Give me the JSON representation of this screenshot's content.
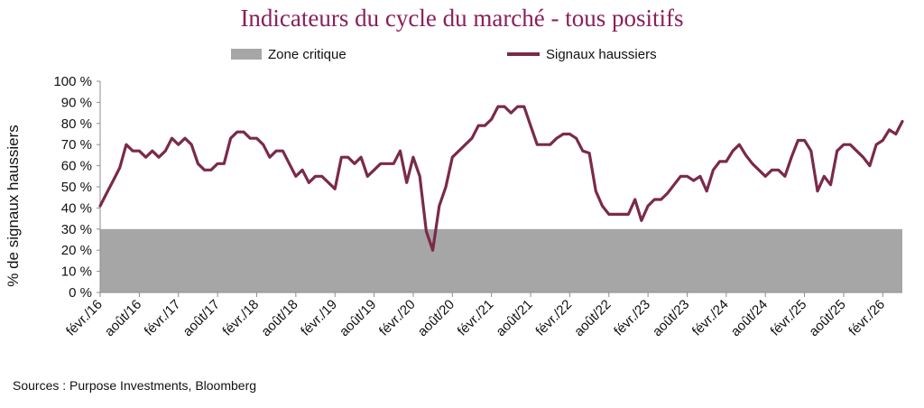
{
  "chart_data": {
    "type": "line",
    "title": "Indicateurs du cycle du marché - tous positifs",
    "ylabel": "% de signaux haussiers",
    "xlabel": "",
    "ylim": [
      0,
      100
    ],
    "yticks": [
      "0 %",
      "10 %",
      "20 %",
      "30 %",
      "40 %",
      "50 %",
      "60 %",
      "70 %",
      "80 %",
      "90 %",
      "100 %"
    ],
    "xtick_labels": [
      "févr./16",
      "août/16",
      "févr./17",
      "août/17",
      "févr./18",
      "août/18",
      "févr./19",
      "août/19",
      "févr./20",
      "août/20",
      "févr./21",
      "août/21",
      "févr./22",
      "août/22",
      "févr./23",
      "août/23",
      "févr./24",
      "août/24",
      "févr./25",
      "août/25",
      "févr./26"
    ],
    "legend_position": "top",
    "grid": false,
    "critical_zone": {
      "name": "Zone critique",
      "y_max": 30,
      "color": "#a6a6a6"
    },
    "series": [
      {
        "name": "Signaux haussiers",
        "color": "#7a2a4a",
        "start": "févr./16",
        "frequency": "monthly",
        "values": [
          41,
          47,
          53,
          59,
          70,
          67,
          67,
          64,
          67,
          64,
          67,
          73,
          70,
          73,
          70,
          61,
          58,
          58,
          61,
          61,
          73,
          76,
          76,
          73,
          73,
          70,
          64,
          67,
          67,
          61,
          55,
          58,
          52,
          55,
          55,
          52,
          49,
          64,
          64,
          61,
          64,
          55,
          58,
          61,
          61,
          61,
          67,
          52,
          64,
          55,
          29,
          20,
          41,
          50,
          64,
          67,
          70,
          73,
          79,
          79,
          82,
          88,
          88,
          85,
          88,
          88,
          79,
          70,
          70,
          70,
          73,
          75,
          75,
          73,
          67,
          66,
          48,
          41,
          37,
          37,
          37,
          37,
          44,
          34,
          41,
          44,
          44,
          47,
          51,
          55,
          55,
          53,
          55,
          48,
          58,
          62,
          62,
          67,
          70,
          65,
          61,
          58,
          55,
          58,
          58,
          55,
          64,
          72,
          72,
          67,
          48,
          55,
          51,
          67,
          70,
          70,
          67,
          64,
          60,
          70,
          72,
          77,
          75,
          81
        ]
      }
    ]
  },
  "source": "Sources : Purpose Investments, Bloomberg"
}
